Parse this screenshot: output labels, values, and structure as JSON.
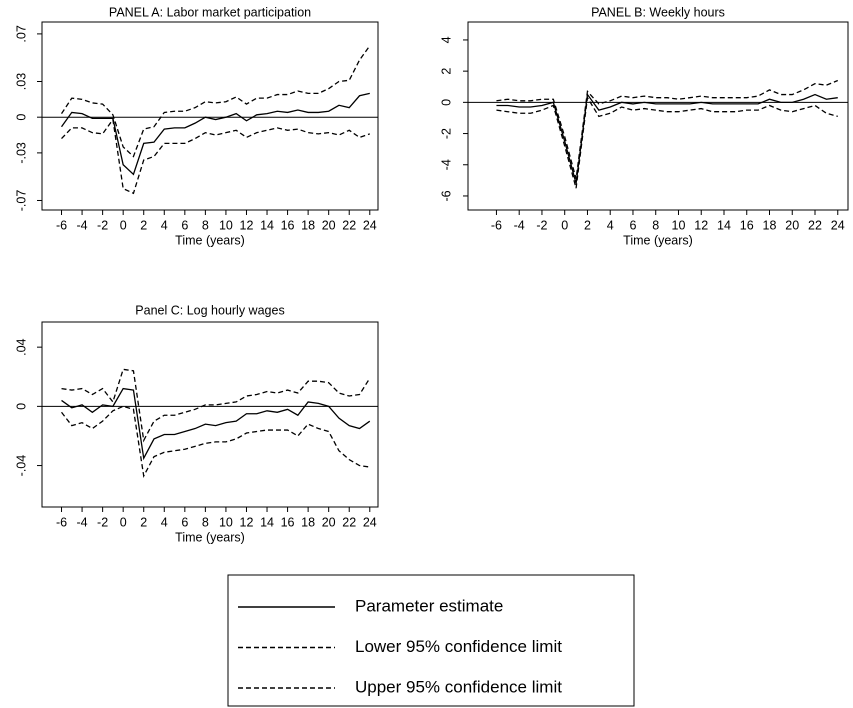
{
  "chart_data": [
    {
      "type": "line",
      "title": "PANEL A: Labor market participation",
      "xlabel": "Time (years)",
      "x": [
        -6,
        -5,
        -4,
        -3,
        -2,
        -1,
        0,
        1,
        2,
        3,
        4,
        5,
        6,
        7,
        8,
        9,
        10,
        11,
        12,
        13,
        14,
        15,
        16,
        17,
        18,
        19,
        20,
        21,
        22,
        23,
        24
      ],
      "xlim": [
        -7.9,
        24.8
      ],
      "xticks": [
        -6,
        -4,
        -2,
        0,
        2,
        4,
        6,
        8,
        10,
        12,
        14,
        16,
        18,
        20,
        22,
        24
      ],
      "ylim": [
        -0.078,
        0.08
      ],
      "yticks": [
        {
          "value": -0.07,
          "label": "-.07"
        },
        {
          "value": -0.03,
          "label": "-.03"
        },
        0,
        {
          "value": 0.03,
          "label": ".03"
        },
        {
          "value": 0.07,
          "label": ".07"
        }
      ],
      "series": [
        {
          "name": "Parameter estimate",
          "color": "#000000",
          "line_style": "solid",
          "values": [
            -0.008,
            0.004,
            0.003,
            -0.001,
            -0.001,
            -0.001,
            -0.04,
            -0.048,
            -0.022,
            -0.021,
            -0.01,
            -0.009,
            -0.009,
            -0.005,
            0,
            -0.002,
            0,
            0.003,
            -0.003,
            0.002,
            0.003,
            0.005,
            0.004,
            0.006,
            0.004,
            0.004,
            0.005,
            0.01,
            0.008,
            0.018,
            0.02
          ]
        },
        {
          "name": "Lower 95% confidence limit",
          "color": "#000000",
          "line_style": "dash",
          "values": [
            -0.018,
            -0.009,
            -0.009,
            -0.013,
            -0.014,
            -0.002,
            -0.06,
            -0.064,
            -0.036,
            -0.033,
            -0.022,
            -0.022,
            -0.022,
            -0.018,
            -0.013,
            -0.015,
            -0.013,
            -0.011,
            -0.017,
            -0.013,
            -0.011,
            -0.009,
            -0.011,
            -0.01,
            -0.013,
            -0.014,
            -0.013,
            -0.015,
            -0.011,
            -0.017,
            -0.014
          ]
        },
        {
          "name": "Upper 95% confidence limit",
          "color": "#000000",
          "line_style": "dash",
          "values": [
            0.003,
            0.016,
            0.015,
            0.012,
            0.011,
            0.002,
            -0.025,
            -0.033,
            -0.01,
            -0.008,
            0.004,
            0.005,
            0.005,
            0.008,
            0.013,
            0.012,
            0.013,
            0.017,
            0.011,
            0.016,
            0.016,
            0.019,
            0.019,
            0.022,
            0.02,
            0.02,
            0.024,
            0.03,
            0.031,
            0.048,
            0.06
          ]
        }
      ]
    },
    {
      "type": "line",
      "title": "PANEL B: Weekly hours",
      "xlabel": "Time (years)",
      "x": [
        -6,
        -5,
        -4,
        -3,
        -2,
        -1,
        0,
        1,
        2,
        3,
        4,
        5,
        6,
        7,
        8,
        9,
        10,
        11,
        12,
        13,
        14,
        15,
        16,
        17,
        18,
        19,
        20,
        21,
        22,
        23,
        24
      ],
      "xlim": [
        -8.5,
        24.9
      ],
      "xticks": [
        -6,
        -4,
        -2,
        0,
        2,
        4,
        6,
        8,
        10,
        12,
        14,
        16,
        18,
        20,
        22,
        24
      ],
      "ylim": [
        -6.9,
        5.15
      ],
      "yticks": [
        -6,
        -4,
        -2,
        0,
        2,
        4
      ],
      "series": [
        {
          "color": "#000000",
          "line_style": "solid",
          "values": [
            -0.2,
            -0.2,
            -0.3,
            -0.3,
            -0.2,
            0,
            -2.5,
            -5.2,
            0.5,
            -0.5,
            -0.3,
            0,
            -0.1,
            0,
            -0.1,
            -0.1,
            -0.1,
            -0.1,
            0,
            -0.1,
            -0.1,
            -0.1,
            -0.1,
            -0.1,
            0.2,
            0,
            0,
            0.2,
            0.5,
            0.2,
            0.3
          ]
        },
        {
          "color": "#000000",
          "line_style": "dash",
          "values": [
            -0.5,
            -0.6,
            -0.7,
            -0.7,
            -0.5,
            -0.2,
            -2.8,
            -5.5,
            0.3,
            -0.9,
            -0.7,
            -0.3,
            -0.5,
            -0.4,
            -0.5,
            -0.6,
            -0.6,
            -0.5,
            -0.4,
            -0.6,
            -0.6,
            -0.6,
            -0.5,
            -0.5,
            -0.2,
            -0.5,
            -0.6,
            -0.4,
            -0.2,
            -0.7,
            -0.9
          ]
        },
        {
          "color": "#000000",
          "line_style": "dash",
          "values": [
            0.1,
            0.2,
            0.1,
            0.1,
            0.2,
            0.2,
            -2.2,
            -4.9,
            0.7,
            -0.1,
            0.1,
            0.4,
            0.3,
            0.4,
            0.3,
            0.3,
            0.2,
            0.3,
            0.4,
            0.3,
            0.3,
            0.3,
            0.3,
            0.4,
            0.8,
            0.5,
            0.5,
            0.8,
            1.2,
            1.1,
            1.4
          ]
        }
      ]
    },
    {
      "type": "line",
      "title": "Panel C: Log hourly wages",
      "xlabel": "Time (years)",
      "x": [
        -6,
        -5,
        -4,
        -3,
        -2,
        -1,
        0,
        1,
        2,
        3,
        4,
        5,
        6,
        7,
        8,
        9,
        10,
        11,
        12,
        13,
        14,
        15,
        16,
        17,
        18,
        19,
        20,
        21,
        22,
        23,
        24
      ],
      "xlim": [
        -7.9,
        24.8
      ],
      "xticks": [
        -6,
        -4,
        -2,
        0,
        2,
        4,
        6,
        8,
        10,
        12,
        14,
        16,
        18,
        20,
        22,
        24
      ],
      "ylim": [
        -0.068,
        0.057
      ],
      "yticks": [
        {
          "value": -0.04,
          "label": "-.04"
        },
        0,
        {
          "value": 0.04,
          "label": ".04"
        }
      ],
      "series": [
        {
          "color": "#000000",
          "line_style": "solid",
          "values": [
            0.004,
            -0.001,
            0.001,
            -0.004,
            0.001,
            0,
            0.012,
            0.011,
            -0.035,
            -0.022,
            -0.019,
            -0.019,
            -0.017,
            -0.015,
            -0.012,
            -0.013,
            -0.011,
            -0.01,
            -0.005,
            -0.005,
            -0.003,
            -0.004,
            -0.002,
            -0.006,
            0.003,
            0.002,
            0,
            -0.008,
            -0.013,
            -0.015,
            -0.01
          ]
        },
        {
          "color": "#000000",
          "line_style": "dash",
          "values": [
            -0.004,
            -0.013,
            -0.011,
            -0.015,
            -0.01,
            -0.003,
            0,
            -0.002,
            -0.047,
            -0.034,
            -0.031,
            -0.03,
            -0.029,
            -0.027,
            -0.025,
            -0.024,
            -0.024,
            -0.022,
            -0.018,
            -0.017,
            -0.016,
            -0.016,
            -0.016,
            -0.02,
            -0.012,
            -0.015,
            -0.017,
            -0.03,
            -0.036,
            -0.04,
            -0.041
          ]
        },
        {
          "color": "#000000",
          "line_style": "dash",
          "values": [
            0.012,
            0.011,
            0.012,
            0.008,
            0.012,
            0.003,
            0.025,
            0.024,
            -0.023,
            -0.01,
            -0.006,
            -0.006,
            -0.004,
            -0.002,
            0.001,
            0.001,
            0.002,
            0.003,
            0.007,
            0.008,
            0.01,
            0.009,
            0.011,
            0.009,
            0.017,
            0.017,
            0.016,
            0.009,
            0.007,
            0.008,
            0.019
          ]
        }
      ]
    }
  ]
}
